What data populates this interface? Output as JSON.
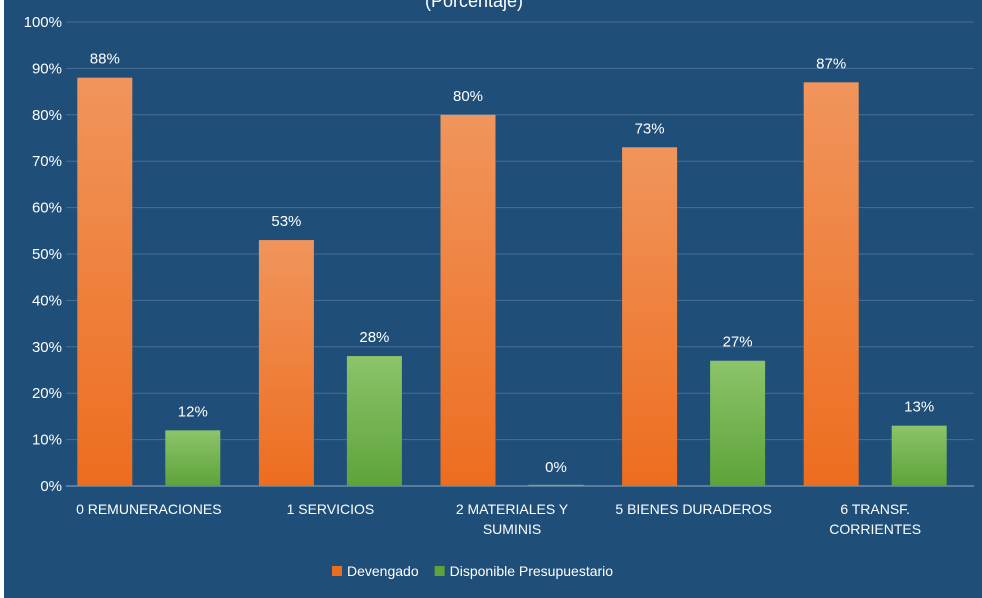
{
  "chart_data": {
    "type": "bar",
    "title": "(Porcentaje)",
    "categories": [
      [
        "0 REMUNERACIONES"
      ],
      [
        "1 SERVICIOS"
      ],
      [
        "2 MATERIALES Y",
        "SUMINIS"
      ],
      [
        "5 BIENES DURADEROS"
      ],
      [
        "6 TRANSF.",
        "CORRIENTES"
      ]
    ],
    "series": [
      {
        "name": "Devengado",
        "values": [
          88,
          53,
          80,
          73,
          87
        ],
        "labels": [
          "88%",
          "53%",
          "80%",
          "73%",
          "87%"
        ],
        "color_top": "#f0955c",
        "color_bottom": "#ed6d1f"
      },
      {
        "name": "Disponible Presupuestario",
        "values": [
          12,
          28,
          0,
          27,
          13
        ],
        "labels": [
          "12%",
          "28%",
          "0%",
          "27%",
          "13%"
        ],
        "color_top": "#8cc46a",
        "color_bottom": "#5ea33a"
      }
    ],
    "ylim": [
      0,
      100
    ],
    "yticks": [
      "0%",
      "10%",
      "20%",
      "30%",
      "40%",
      "50%",
      "60%",
      "70%",
      "80%",
      "90%",
      "100%"
    ],
    "grid": true,
    "legend_position": "bottom",
    "background": "#1f4e79",
    "gridline_color": "#4a6f95"
  }
}
